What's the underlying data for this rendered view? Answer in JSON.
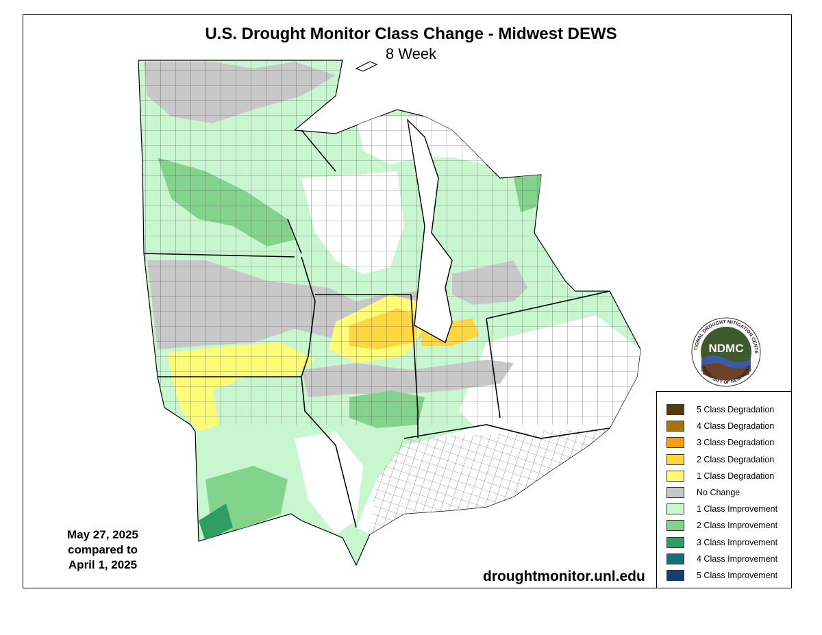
{
  "title": "U.S. Drought Monitor Class Change - Midwest DEWS",
  "subtitle": "8 Week",
  "date_line1": "May 27, 2025",
  "date_line2": "compared to",
  "date_line3": "April 1, 2025",
  "url": "droughtmonitor.unl.edu",
  "logo": {
    "center_text": "NDMC",
    "ring_top": "NATIONAL DROUGHT MITIGATION CENTER",
    "ring_bottom": "UNIVERSITY OF NEBRASKA"
  },
  "legend": [
    {
      "label": "5 Class Degradation",
      "color": "#5a3a0c"
    },
    {
      "label": "4 Class Degradation",
      "color": "#a8730f"
    },
    {
      "label": "3 Class Degradation",
      "color": "#f7a00e"
    },
    {
      "label": "2 Class Degradation",
      "color": "#fdd73f"
    },
    {
      "label": "1 Class Degradation",
      "color": "#fdfc74"
    },
    {
      "label": "No Change",
      "color": "#c8c8c8"
    },
    {
      "label": "1 Class Improvement",
      "color": "#c8f7cf"
    },
    {
      "label": "2 Class Improvement",
      "color": "#82d38c"
    },
    {
      "label": "3 Class Improvement",
      "color": "#2e9e62"
    },
    {
      "label": "4 Class Improvement",
      "color": "#12717a"
    },
    {
      "label": "5 Class Improvement",
      "color": "#143e7a"
    }
  ]
}
